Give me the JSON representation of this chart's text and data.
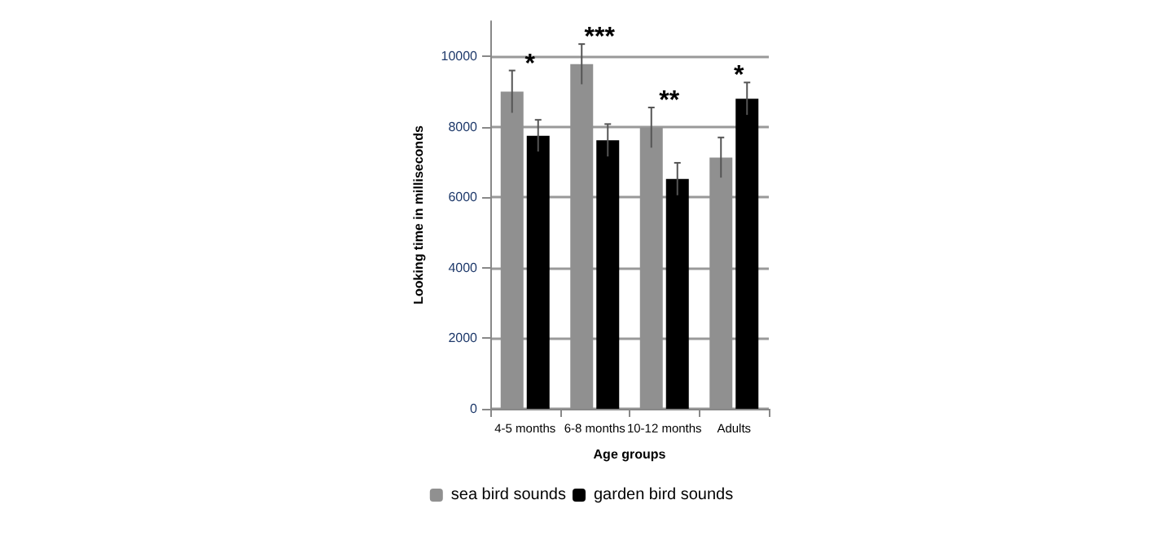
{
  "chart_data": {
    "type": "bar",
    "xlabel": "Age groups",
    "ylabel": "Looking time in milliseconds",
    "categories": [
      "4-5 months",
      "6-8 months",
      "10-12 months",
      "Adults"
    ],
    "series": [
      {
        "name": "sea bird sounds",
        "color": "#909090",
        "values": [
          9000,
          9780,
          7980,
          7130
        ],
        "errors": [
          600,
          570,
          570,
          570
        ]
      },
      {
        "name": "garden bird sounds",
        "color": "#000000",
        "values": [
          7750,
          7620,
          6520,
          8800
        ],
        "errors": [
          450,
          460,
          460,
          460
        ]
      }
    ],
    "annotations": [
      "*",
      "***",
      "**",
      "*"
    ],
    "ylim": [
      0,
      11000
    ],
    "yticks": [
      0,
      2000,
      4000,
      6000,
      8000,
      10000
    ],
    "grid": "y",
    "legend": "bottom"
  }
}
